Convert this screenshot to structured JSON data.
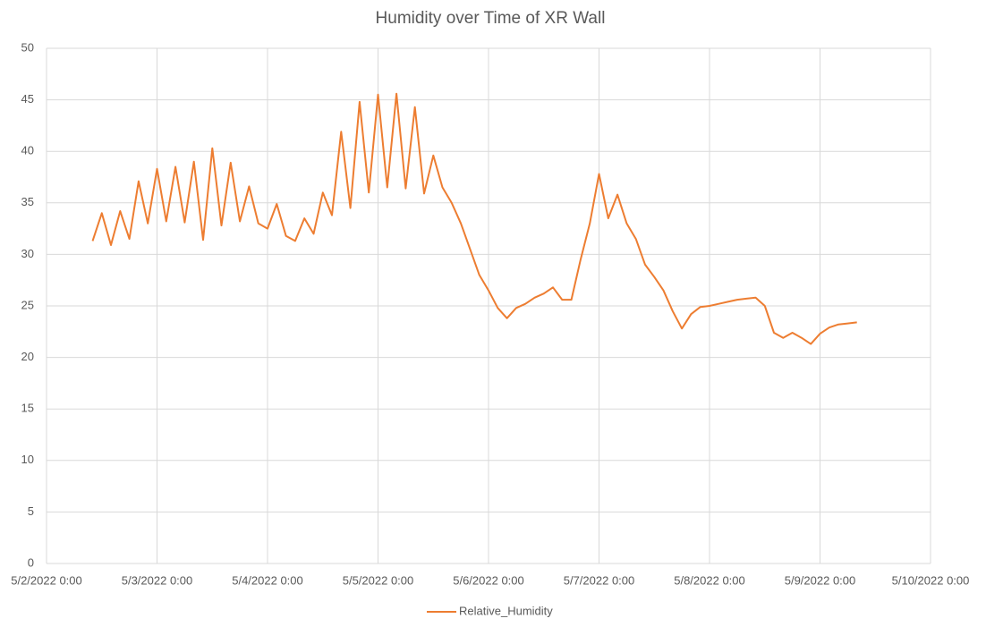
{
  "chart_data": {
    "type": "line",
    "title": "Humidity over Time of XR Wall",
    "x": [
      "5/2/2022 10:00",
      "5/2/2022 12:00",
      "5/2/2022 14:00",
      "5/2/2022 16:00",
      "5/2/2022 18:00",
      "5/2/2022 20:00",
      "5/2/2022 22:00",
      "5/3/2022 0:00",
      "5/3/2022 2:00",
      "5/3/2022 4:00",
      "5/3/2022 6:00",
      "5/3/2022 8:00",
      "5/3/2022 10:00",
      "5/3/2022 12:00",
      "5/3/2022 14:00",
      "5/3/2022 16:00",
      "5/3/2022 18:00",
      "5/3/2022 20:00",
      "5/3/2022 22:00",
      "5/4/2022 0:00",
      "5/4/2022 2:00",
      "5/4/2022 4:00",
      "5/4/2022 6:00",
      "5/4/2022 8:00",
      "5/4/2022 10:00",
      "5/4/2022 12:00",
      "5/4/2022 14:00",
      "5/4/2022 16:00",
      "5/4/2022 18:00",
      "5/4/2022 20:00",
      "5/4/2022 22:00",
      "5/5/2022 0:00",
      "5/5/2022 2:00",
      "5/5/2022 4:00",
      "5/5/2022 6:00",
      "5/5/2022 8:00",
      "5/5/2022 10:00",
      "5/5/2022 12:00",
      "5/5/2022 14:00",
      "5/5/2022 16:00",
      "5/5/2022 18:00",
      "5/5/2022 20:00",
      "5/5/2022 22:00",
      "5/6/2022 0:00",
      "5/6/2022 2:00",
      "5/6/2022 4:00",
      "5/6/2022 6:00",
      "5/6/2022 8:00",
      "5/6/2022 10:00",
      "5/6/2022 12:00",
      "5/6/2022 14:00",
      "5/6/2022 16:00",
      "5/6/2022 18:00",
      "5/6/2022 20:00",
      "5/6/2022 22:00",
      "5/7/2022 0:00",
      "5/7/2022 2:00",
      "5/7/2022 4:00",
      "5/7/2022 6:00",
      "5/7/2022 8:00",
      "5/7/2022 10:00",
      "5/7/2022 12:00",
      "5/7/2022 14:00",
      "5/7/2022 16:00",
      "5/7/2022 18:00",
      "5/7/2022 20:00",
      "5/7/2022 22:00",
      "5/8/2022 0:00",
      "5/8/2022 2:00",
      "5/8/2022 4:00",
      "5/8/2022 6:00",
      "5/8/2022 8:00",
      "5/8/2022 10:00",
      "5/8/2022 12:00",
      "5/8/2022 14:00",
      "5/8/2022 16:00",
      "5/8/2022 18:00",
      "5/8/2022 20:00",
      "5/8/2022 22:00",
      "5/9/2022 0:00",
      "5/9/2022 2:00",
      "5/9/2022 4:00",
      "5/9/2022 6:00",
      "5/9/2022 8:00"
    ],
    "series": [
      {
        "name": "Relative_Humidity",
        "color": "#ed7d31",
        "values": [
          31.3,
          34.0,
          30.9,
          34.2,
          31.5,
          37.1,
          33.0,
          38.3,
          33.2,
          38.5,
          33.1,
          39.0,
          31.4,
          40.3,
          32.8,
          38.9,
          33.2,
          36.6,
          33.0,
          32.5,
          34.9,
          31.8,
          31.3,
          33.5,
          32.0,
          36.0,
          33.8,
          41.9,
          34.5,
          44.8,
          36.0,
          45.5,
          36.5,
          45.6,
          36.4,
          44.3,
          35.9,
          39.6,
          36.5,
          35.0,
          33.0,
          30.5,
          28.0,
          26.5,
          24.8,
          23.8,
          24.8,
          25.2,
          25.8,
          26.2,
          26.8,
          25.6,
          25.6,
          29.5,
          33.0,
          37.8,
          33.5,
          35.8,
          33.0,
          31.5,
          29.0,
          27.8,
          26.5,
          24.5,
          22.8,
          24.2,
          24.9,
          25.0,
          25.2,
          25.4,
          25.6,
          25.7,
          25.8,
          25.0,
          22.4,
          21.9,
          22.4,
          21.9,
          21.3,
          22.3,
          22.9,
          23.2,
          23.3,
          23.4
        ]
      }
    ],
    "xlim": [
      "5/2/2022 0:00",
      "5/10/2022 0:00"
    ],
    "xticks": [
      "5/2/2022 0:00",
      "5/3/2022 0:00",
      "5/4/2022 0:00",
      "5/5/2022 0:00",
      "5/6/2022 0:00",
      "5/7/2022 0:00",
      "5/8/2022 0:00",
      "5/9/2022 0:00",
      "5/10/2022 0:00"
    ],
    "ylim": [
      0,
      50
    ],
    "yticks": [
      0,
      5,
      10,
      15,
      20,
      25,
      30,
      35,
      40,
      45,
      50
    ],
    "grid": true
  }
}
